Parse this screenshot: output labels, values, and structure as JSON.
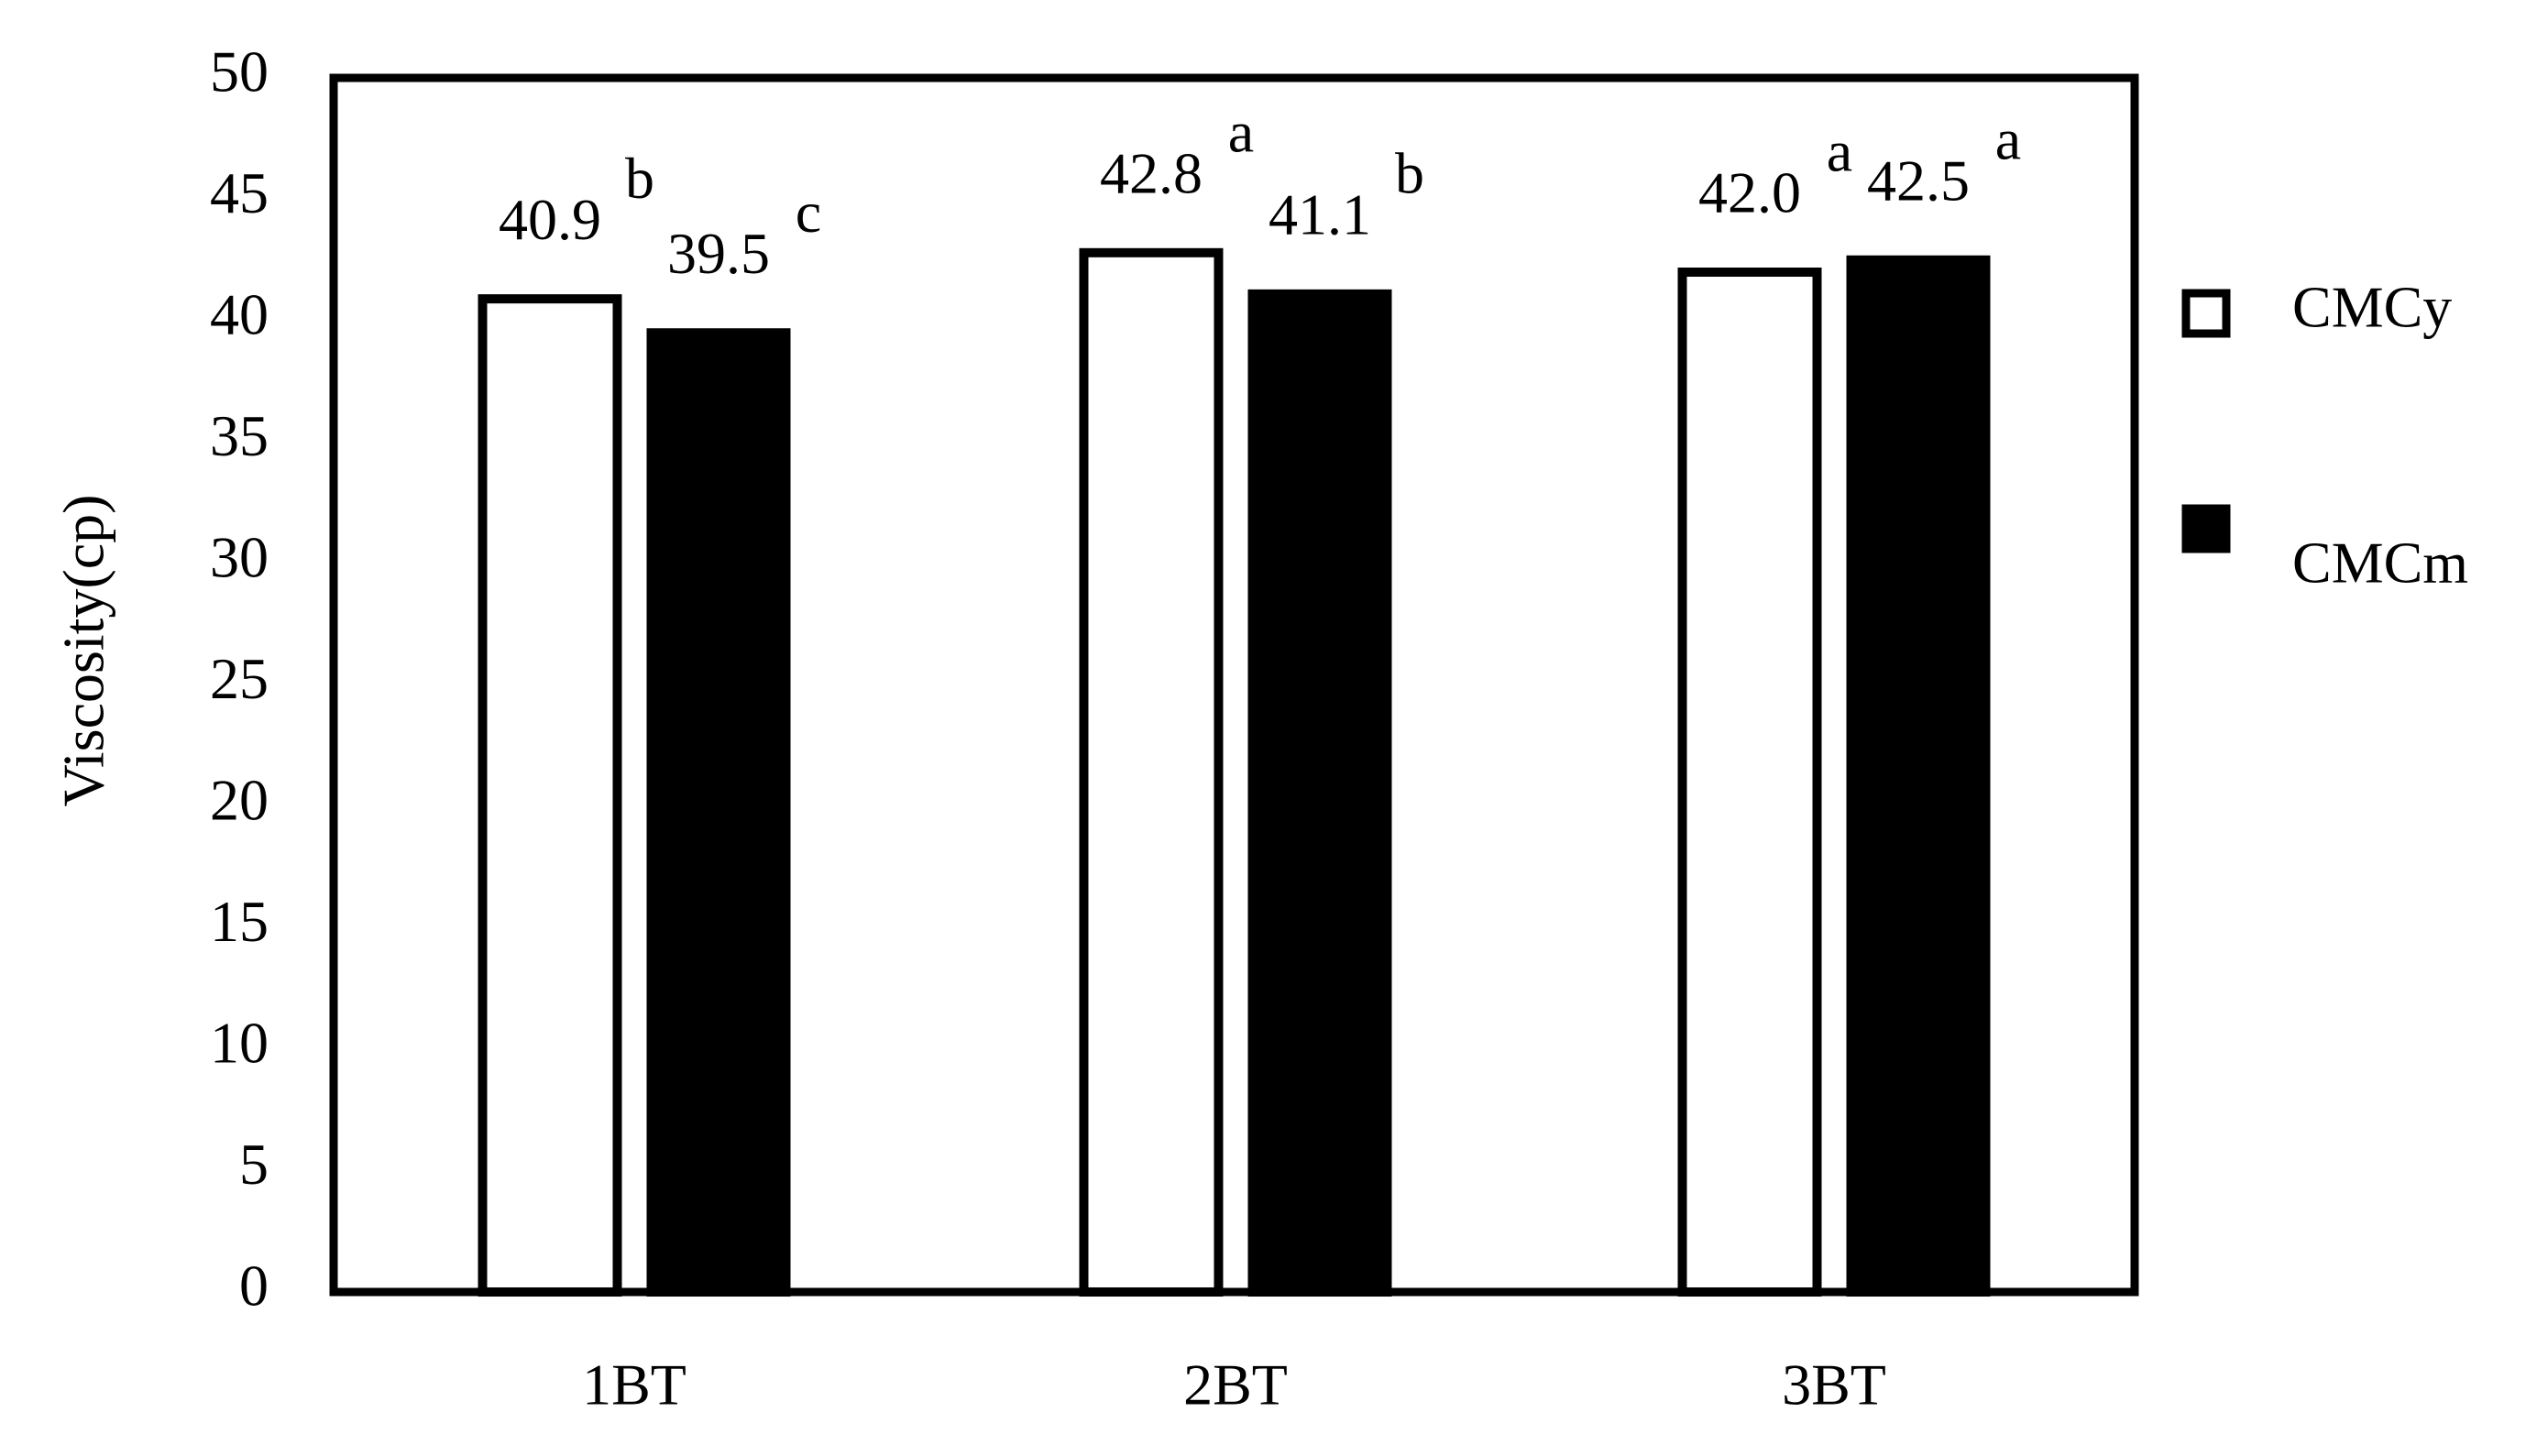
{
  "chart_data": {
    "type": "bar",
    "y_label": "Viscosity(cp)",
    "categories": [
      "1BT",
      "2BT",
      "3BT"
    ],
    "series": [
      {
        "name": "CMCy",
        "color": "#ffffff",
        "values": [
          40.9,
          42.8,
          42
        ],
        "value_labels": [
          "40.9",
          "42.8",
          "42.0"
        ],
        "letters": [
          "b",
          "a",
          "a"
        ]
      },
      {
        "name": "CMCm",
        "color": "#000000",
        "values": [
          39.5,
          41.1,
          42.5
        ],
        "value_labels": [
          "39.5",
          "41.1",
          "42.5"
        ],
        "letters": [
          "c",
          "b",
          "a"
        ]
      }
    ],
    "ylim": [
      0,
      50
    ],
    "yticks": [
      0,
      5,
      10,
      15,
      20,
      25,
      30,
      35,
      40,
      45,
      50
    ],
    "legend": "right"
  }
}
